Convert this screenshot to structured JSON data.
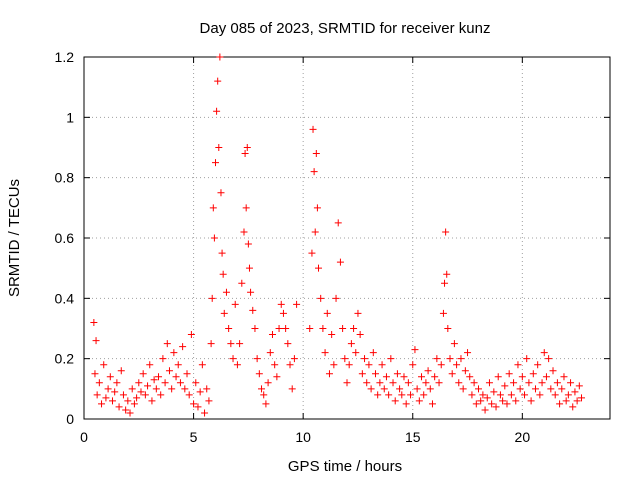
{
  "chart_data": {
    "type": "scatter",
    "title": "Day 085 of 2023, SRMTID for receiver kunz",
    "xlabel": "GPS time / hours",
    "ylabel": "SRMTID / TECUs",
    "xlim": [
      0,
      24
    ],
    "ylim": [
      0,
      1.2
    ],
    "xticks": [
      0,
      5,
      10,
      15,
      20
    ],
    "xtick_labels": [
      "0",
      "5",
      "10",
      "15",
      "20"
    ],
    "yticks": [
      0,
      0.2,
      0.4,
      0.6,
      0.8,
      1.0,
      1.2
    ],
    "ytick_labels": [
      "0",
      "0.2",
      "0.4",
      "0.6",
      "0.8",
      "1",
      "1.2"
    ],
    "grid": true,
    "marker": "+",
    "marker_color": "#ff0000",
    "series": [
      {
        "name": "SRMTID",
        "x": [
          0.45,
          0.5,
          0.55,
          0.6,
          0.7,
          0.8,
          0.9,
          1.0,
          1.1,
          1.2,
          1.3,
          1.4,
          1.5,
          1.6,
          1.7,
          1.8,
          1.9,
          2.0,
          2.1,
          2.2,
          2.3,
          2.4,
          2.5,
          2.6,
          2.7,
          2.8,
          2.9,
          3.0,
          3.1,
          3.2,
          3.3,
          3.4,
          3.5,
          3.6,
          3.7,
          3.8,
          3.9,
          4.0,
          4.1,
          4.2,
          4.3,
          4.4,
          4.5,
          4.6,
          4.7,
          4.8,
          4.9,
          5.0,
          5.1,
          5.2,
          5.3,
          5.4,
          5.5,
          5.6,
          5.7,
          5.8,
          5.85,
          5.9,
          5.95,
          6.0,
          6.05,
          6.1,
          6.15,
          6.2,
          6.25,
          6.3,
          6.35,
          6.4,
          6.5,
          6.6,
          6.7,
          6.8,
          6.9,
          7.0,
          7.1,
          7.2,
          7.3,
          7.35,
          7.4,
          7.45,
          7.5,
          7.55,
          7.6,
          7.7,
          7.8,
          7.9,
          8.0,
          8.1,
          8.2,
          8.3,
          8.4,
          8.5,
          8.6,
          8.7,
          8.8,
          8.9,
          9.0,
          9.1,
          9.2,
          9.3,
          9.4,
          9.5,
          9.6,
          9.7,
          10.3,
          10.4,
          10.45,
          10.5,
          10.55,
          10.6,
          10.65,
          10.7,
          10.8,
          10.9,
          11.0,
          11.1,
          11.2,
          11.3,
          11.4,
          11.5,
          11.6,
          11.7,
          11.8,
          11.9,
          12.0,
          12.1,
          12.2,
          12.3,
          12.4,
          12.5,
          12.6,
          12.7,
          12.8,
          12.9,
          13.0,
          13.1,
          13.2,
          13.3,
          13.4,
          13.5,
          13.6,
          13.7,
          13.8,
          13.9,
          14.0,
          14.1,
          14.2,
          14.3,
          14.4,
          14.5,
          14.6,
          14.7,
          14.8,
          14.9,
          15.0,
          15.1,
          15.2,
          15.3,
          15.4,
          15.5,
          15.6,
          15.7,
          15.8,
          15.9,
          16.0,
          16.1,
          16.2,
          16.3,
          16.4,
          16.45,
          16.5,
          16.55,
          16.6,
          16.7,
          16.8,
          16.9,
          17.0,
          17.1,
          17.2,
          17.3,
          17.4,
          17.5,
          17.6,
          17.7,
          17.8,
          17.9,
          18.0,
          18.1,
          18.2,
          18.3,
          18.4,
          18.5,
          18.6,
          18.7,
          18.8,
          18.9,
          19.0,
          19.1,
          19.2,
          19.3,
          19.4,
          19.5,
          19.6,
          19.7,
          19.8,
          19.9,
          20.0,
          20.1,
          20.2,
          20.3,
          20.4,
          20.5,
          20.6,
          20.7,
          20.8,
          20.9,
          21.0,
          21.1,
          21.2,
          21.3,
          21.4,
          21.5,
          21.6,
          21.7,
          21.8,
          21.9,
          22.0,
          22.1,
          22.2,
          22.3,
          22.4,
          22.5,
          22.6,
          22.7
        ],
        "y": [
          0.32,
          0.15,
          0.26,
          0.08,
          0.12,
          0.05,
          0.18,
          0.07,
          0.1,
          0.14,
          0.06,
          0.09,
          0.12,
          0.04,
          0.16,
          0.08,
          0.03,
          0.06,
          0.02,
          0.1,
          0.05,
          0.07,
          0.12,
          0.09,
          0.15,
          0.08,
          0.11,
          0.18,
          0.06,
          0.13,
          0.1,
          0.14,
          0.08,
          0.2,
          0.12,
          0.25,
          0.16,
          0.1,
          0.22,
          0.14,
          0.18,
          0.12,
          0.24,
          0.1,
          0.15,
          0.08,
          0.28,
          0.05,
          0.12,
          0.04,
          0.09,
          0.18,
          0.02,
          0.1,
          0.06,
          0.25,
          0.4,
          0.7,
          0.6,
          0.85,
          1.02,
          1.12,
          0.9,
          1.2,
          0.75,
          0.55,
          0.48,
          0.35,
          0.42,
          0.3,
          0.25,
          0.2,
          0.38,
          0.18,
          0.25,
          0.45,
          0.62,
          0.88,
          0.7,
          0.9,
          0.58,
          0.5,
          0.42,
          0.36,
          0.3,
          0.2,
          0.15,
          0.1,
          0.08,
          0.05,
          0.12,
          0.22,
          0.28,
          0.18,
          0.14,
          0.3,
          0.38,
          0.35,
          0.3,
          0.25,
          0.18,
          0.1,
          0.2,
          0.38,
          0.3,
          0.55,
          0.96,
          0.82,
          0.62,
          0.88,
          0.7,
          0.5,
          0.4,
          0.3,
          0.22,
          0.35,
          0.15,
          0.28,
          0.18,
          0.4,
          0.65,
          0.52,
          0.3,
          0.2,
          0.12,
          0.18,
          0.25,
          0.3,
          0.22,
          0.35,
          0.28,
          0.15,
          0.2,
          0.12,
          0.18,
          0.1,
          0.22,
          0.15,
          0.08,
          0.12,
          0.18,
          0.1,
          0.14,
          0.08,
          0.2,
          0.12,
          0.06,
          0.15,
          0.1,
          0.08,
          0.14,
          0.05,
          0.12,
          0.08,
          0.18,
          0.23,
          0.1,
          0.06,
          0.14,
          0.08,
          0.12,
          0.16,
          0.1,
          0.05,
          0.14,
          0.2,
          0.12,
          0.18,
          0.35,
          0.45,
          0.62,
          0.48,
          0.3,
          0.2,
          0.15,
          0.25,
          0.18,
          0.12,
          0.2,
          0.1,
          0.16,
          0.22,
          0.14,
          0.08,
          0.12,
          0.05,
          0.1,
          0.06,
          0.08,
          0.03,
          0.07,
          0.12,
          0.05,
          0.09,
          0.04,
          0.14,
          0.08,
          0.06,
          0.11,
          0.05,
          0.15,
          0.08,
          0.12,
          0.06,
          0.18,
          0.1,
          0.14,
          0.08,
          0.2,
          0.12,
          0.06,
          0.15,
          0.1,
          0.18,
          0.08,
          0.12,
          0.22,
          0.14,
          0.2,
          0.1,
          0.16,
          0.08,
          0.12,
          0.05,
          0.1,
          0.14,
          0.06,
          0.08,
          0.12,
          0.04,
          0.09,
          0.06,
          0.11,
          0.07
        ]
      }
    ]
  }
}
